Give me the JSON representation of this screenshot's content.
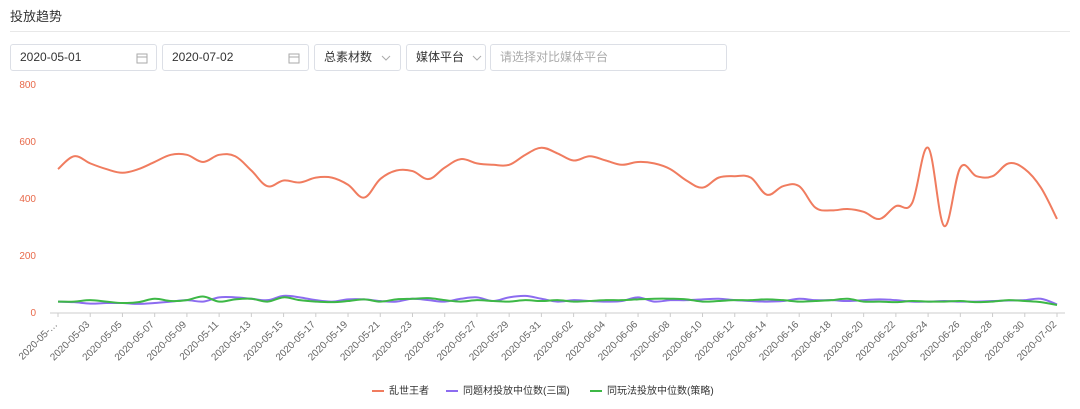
{
  "ui": {
    "title": "投放趋势",
    "start_date": "2020-05-01",
    "end_date": "2020-07-02",
    "metric": "总素材数",
    "platform": "媒体平台",
    "compare_placeholder": "请选择对比媒体平台"
  },
  "chart_data": {
    "type": "line",
    "categories": [
      "2020-05-…",
      null,
      "2020-05-03",
      null,
      "2020-05-05",
      null,
      "2020-05-07",
      null,
      "2020-05-09",
      null,
      "2020-05-11",
      null,
      "2020-05-13",
      null,
      "2020-05-15",
      null,
      "2020-05-17",
      null,
      "2020-05-19",
      null,
      "2020-05-21",
      null,
      "2020-05-23",
      null,
      "2020-05-25",
      null,
      "2020-05-27",
      null,
      "2020-05-29",
      null,
      "2020-05-31",
      null,
      "2020-06-02",
      null,
      "2020-06-04",
      null,
      "2020-06-06",
      null,
      "2020-06-08",
      null,
      "2020-06-10",
      null,
      "2020-06-12",
      null,
      "2020-06-14",
      null,
      "2020-06-16",
      null,
      "2020-06-18",
      null,
      "2020-06-20",
      null,
      "2020-06-22",
      null,
      "2020-06-24",
      null,
      "2020-06-26",
      null,
      "2020-06-28",
      null,
      "2020-06-30",
      null,
      "2020-07-02"
    ],
    "series": [
      {
        "name": "乱世王者",
        "color": "#f07c5f",
        "values": [
          505,
          550,
          525,
          505,
          492,
          505,
          530,
          555,
          555,
          530,
          555,
          550,
          500,
          445,
          465,
          458,
          475,
          475,
          450,
          405,
          470,
          500,
          498,
          470,
          510,
          540,
          525,
          520,
          520,
          555,
          580,
          560,
          535,
          550,
          535,
          520,
          530,
          525,
          505,
          465,
          440,
          475,
          480,
          475,
          415,
          445,
          445,
          370,
          360,
          365,
          355,
          330,
          375,
          385,
          580,
          305,
          510,
          480,
          480,
          525,
          505,
          440,
          330
        ]
      },
      {
        "name": "同题材投放中位数(三国)",
        "color": "#8c6cf0",
        "values": [
          40,
          38,
          33,
          35,
          35,
          32,
          35,
          40,
          45,
          40,
          55,
          55,
          50,
          45,
          60,
          55,
          45,
          40,
          48,
          48,
          42,
          40,
          50,
          45,
          40,
          50,
          55,
          42,
          55,
          60,
          50,
          40,
          45,
          42,
          40,
          42,
          55,
          40,
          45,
          45,
          48,
          50,
          45,
          42,
          40,
          42,
          50,
          45,
          45,
          42,
          45,
          48,
          45,
          40,
          40,
          42,
          40,
          40,
          42,
          44,
          45,
          50,
          30
        ]
      },
      {
        "name": "同玩法投放中位数(策略)",
        "color": "#3db846",
        "values": [
          40,
          40,
          45,
          40,
          35,
          38,
          50,
          42,
          45,
          58,
          40,
          48,
          50,
          40,
          55,
          45,
          40,
          38,
          42,
          48,
          40,
          48,
          50,
          52,
          45,
          40,
          45,
          42,
          40,
          45,
          42,
          45,
          40,
          42,
          45,
          45,
          48,
          50,
          50,
          48,
          40,
          42,
          45,
          45,
          48,
          45,
          40,
          42,
          45,
          50,
          40,
          40,
          38,
          42,
          40,
          40,
          42,
          38,
          40,
          45,
          42,
          38,
          28
        ]
      }
    ],
    "ylim": [
      0,
      800
    ],
    "yticks": [
      0,
      200,
      400,
      600,
      800
    ],
    "grid": false,
    "legend": "bottom"
  }
}
